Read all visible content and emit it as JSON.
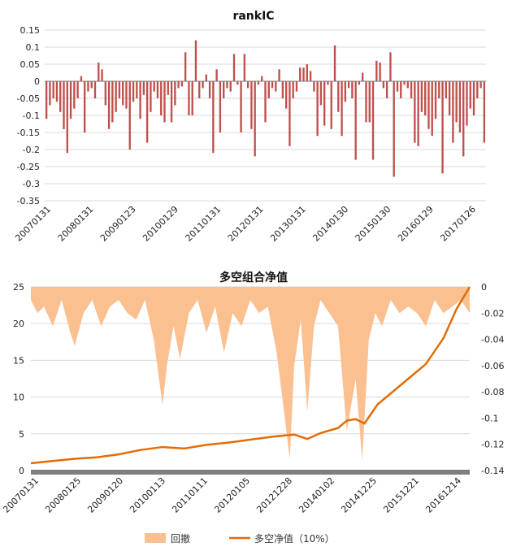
{
  "chart_data": [
    {
      "type": "bar",
      "title": "rankIC",
      "ylim": [
        -0.35,
        0.15
      ],
      "yticks": [
        0.15,
        0.1,
        0.05,
        0,
        -0.05,
        -0.1,
        -0.15,
        -0.2,
        -0.25,
        -0.3,
        -0.35
      ],
      "xticklabels": [
        "20070131",
        "20080131",
        "20090123",
        "20100129",
        "20110131",
        "20120131",
        "20130131",
        "20140130",
        "20150130",
        "20160129",
        "20170126"
      ],
      "color": "#c0504d",
      "values": [
        -0.11,
        -0.07,
        -0.05,
        -0.06,
        -0.09,
        -0.14,
        -0.21,
        -0.11,
        -0.08,
        -0.05,
        0.015,
        -0.15,
        -0.03,
        -0.02,
        -0.05,
        0.055,
        0.035,
        -0.07,
        -0.14,
        -0.12,
        -0.09,
        -0.05,
        -0.07,
        -0.08,
        -0.2,
        -0.06,
        -0.05,
        -0.11,
        -0.04,
        -0.18,
        -0.09,
        -0.03,
        -0.05,
        -0.1,
        -0.12,
        -0.04,
        -0.12,
        -0.07,
        -0.02,
        -0.015,
        0.085,
        -0.1,
        -0.1,
        0.12,
        -0.05,
        -0.02,
        0.02,
        -0.05,
        -0.21,
        0.035,
        -0.15,
        -0.05,
        -0.02,
        -0.03,
        0.08,
        -0.01,
        -0.15,
        0.08,
        -0.02,
        -0.14,
        -0.22,
        -0.01,
        0.015,
        -0.12,
        -0.05,
        -0.02,
        -0.03,
        0.035,
        -0.05,
        -0.08,
        -0.19,
        -0.05,
        -0.03,
        0.04,
        0.04,
        0.05,
        0.03,
        -0.03,
        -0.16,
        -0.07,
        -0.13,
        -0.01,
        -0.14,
        0.105,
        -0.09,
        -0.16,
        -0.06,
        -0.02,
        -0.05,
        -0.23,
        -0.01,
        0.025,
        -0.12,
        -0.12,
        -0.23,
        0.06,
        0.055,
        -0.02,
        -0.05,
        0.085,
        -0.28,
        -0.03,
        -0.05,
        -0.01,
        -0.02,
        -0.05,
        -0.18,
        -0.19,
        -0.09,
        -0.1,
        -0.14,
        -0.16,
        -0.11,
        -0.05,
        -0.27,
        -0.05,
        -0.1,
        -0.18,
        -0.12,
        -0.15,
        -0.22,
        -0.13,
        -0.08,
        -0.1,
        -0.05,
        -0.02,
        -0.18
      ]
    },
    {
      "type": "area+line",
      "title": "多空组合净值",
      "y_left_lim": [
        0,
        25
      ],
      "y_left_ticks": [
        0,
        5,
        10,
        15,
        20,
        25
      ],
      "y_right_lim": [
        -0.14,
        0
      ],
      "y_right_ticks": [
        0,
        -0.02,
        -0.04,
        -0.06,
        -0.08,
        -0.1,
        -0.12,
        -0.14
      ],
      "xticklabels": [
        "20070131",
        "20080125",
        "20090120",
        "20100113",
        "20110111",
        "20120105",
        "20121228",
        "20140102",
        "20141225",
        "20151221",
        "20161214"
      ],
      "series": [
        {
          "name": "回撤",
          "axis": "right",
          "color": "#fac090",
          "x": [
            0,
            0.015,
            0.03,
            0.05,
            0.07,
            0.09,
            0.1,
            0.12,
            0.14,
            0.16,
            0.18,
            0.2,
            0.22,
            0.24,
            0.26,
            0.28,
            0.3,
            0.31,
            0.325,
            0.34,
            0.36,
            0.38,
            0.4,
            0.42,
            0.44,
            0.46,
            0.48,
            0.5,
            0.52,
            0.54,
            0.56,
            0.575,
            0.59,
            0.6,
            0.615,
            0.63,
            0.645,
            0.66,
            0.68,
            0.7,
            0.72,
            0.74,
            0.755,
            0.77,
            0.785,
            0.8,
            0.82,
            0.84,
            0.86,
            0.88,
            0.9,
            0.92,
            0.94,
            0.96,
            0.98,
            1
          ],
          "values": [
            -0.01,
            -0.02,
            -0.015,
            -0.03,
            -0.01,
            -0.035,
            -0.045,
            -0.02,
            -0.01,
            -0.03,
            -0.015,
            -0.01,
            -0.02,
            -0.025,
            -0.01,
            -0.04,
            -0.09,
            -0.06,
            -0.03,
            -0.055,
            -0.02,
            -0.01,
            -0.035,
            -0.015,
            -0.05,
            -0.02,
            -0.03,
            -0.01,
            -0.02,
            -0.015,
            -0.05,
            -0.09,
            -0.131,
            -0.06,
            -0.025,
            -0.095,
            -0.03,
            -0.01,
            -0.02,
            -0.03,
            -0.11,
            -0.07,
            -0.132,
            -0.04,
            -0.02,
            -0.03,
            -0.01,
            -0.02,
            -0.015,
            -0.02,
            -0.03,
            -0.01,
            -0.02,
            -0.015,
            -0.01,
            -0.02
          ]
        },
        {
          "name": "多空净值（10%）",
          "axis": "left",
          "color": "#e36c09",
          "x": [
            0,
            0.05,
            0.1,
            0.15,
            0.2,
            0.25,
            0.3,
            0.35,
            0.4,
            0.45,
            0.5,
            0.55,
            0.6,
            0.63,
            0.66,
            0.7,
            0.72,
            0.74,
            0.76,
            0.79,
            0.82,
            0.86,
            0.9,
            0.94,
            0.97,
            1
          ],
          "values": [
            1,
            1.3,
            1.6,
            1.8,
            2.2,
            2.8,
            3.2,
            3.0,
            3.5,
            3.8,
            4.2,
            4.6,
            4.9,
            4.3,
            5.1,
            5.8,
            6.8,
            7.0,
            6.4,
            9.0,
            10.5,
            12.5,
            14.5,
            18.0,
            22.0,
            25.0
          ]
        }
      ]
    }
  ]
}
